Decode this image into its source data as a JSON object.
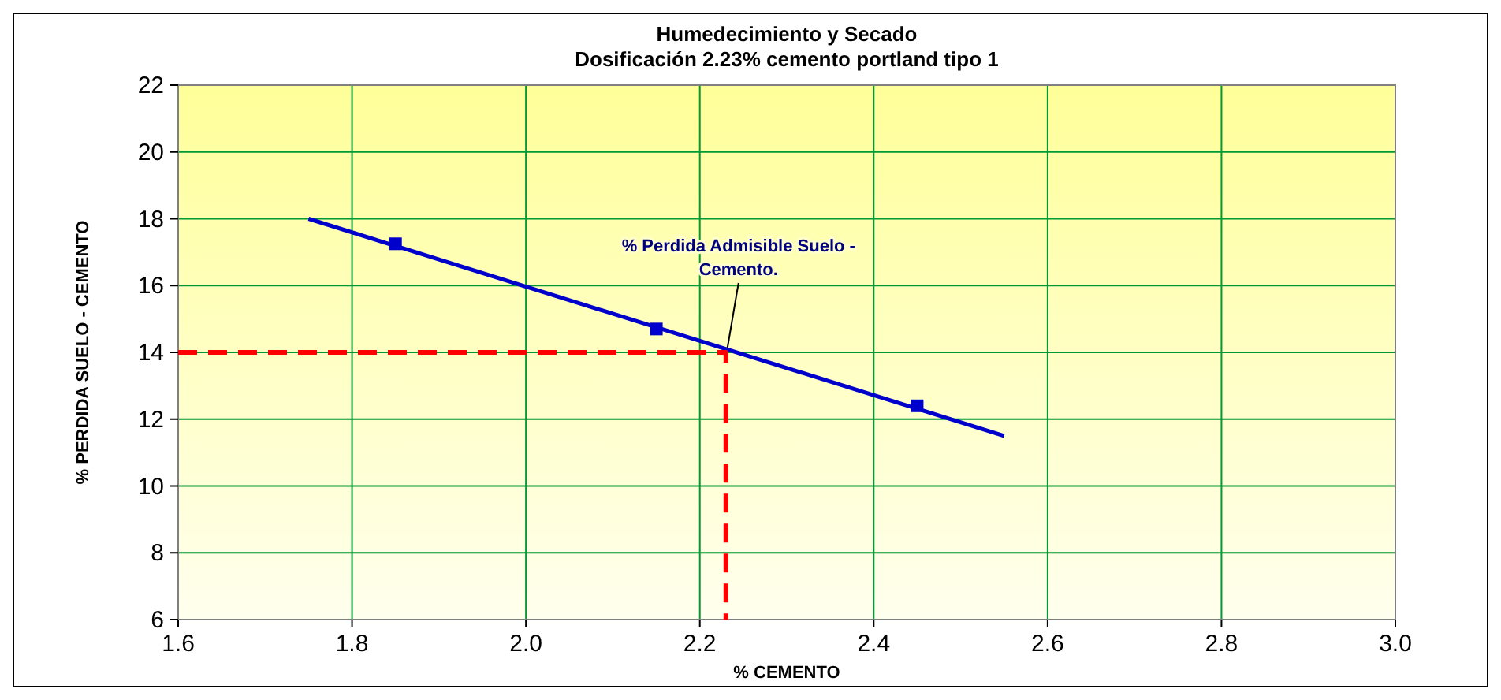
{
  "chart_data": {
    "type": "scatter",
    "title": "Humedecimiento y Secado",
    "subtitle": "Dosificación 2.23% cemento portland tipo 1",
    "xlabel": "% CEMENTO",
    "ylabel": "% PERDIDA SUELO - CEMENTO",
    "xlim": [
      1.6,
      3.0
    ],
    "xticks": [
      {
        "value": 1.6,
        "label": "1.6"
      },
      {
        "value": 1.8,
        "label": "1.8"
      },
      {
        "value": 2.0,
        "label": "2.0"
      },
      {
        "value": 2.2,
        "label": "2.2"
      },
      {
        "value": 2.4,
        "label": "2.4"
      },
      {
        "value": 2.6,
        "label": "2.6"
      },
      {
        "value": 2.8,
        "label": "2.8"
      },
      {
        "value": 3.0,
        "label": "3.0"
      }
    ],
    "ylim": [
      6,
      22
    ],
    "yticks": [
      6,
      8,
      10,
      12,
      14,
      16,
      18,
      20,
      22
    ],
    "grid": true,
    "series": [
      {
        "type": "line",
        "color": "#0000cc",
        "x": [
          1.75,
          2.55
        ],
        "values": [
          18,
          11.5
        ],
        "marker": "none",
        "line_style": "solid"
      },
      {
        "color": "#0000cc",
        "x": [
          1.85,
          2.15,
          2.45
        ],
        "values": [
          17.25,
          14.7,
          12.4
        ],
        "marker": "square"
      },
      {
        "type": "line",
        "color": "#ff0000",
        "x": [
          1.6,
          2.23,
          2.23
        ],
        "values": [
          14,
          14,
          6
        ],
        "marker": "none",
        "line_style": "dashed"
      }
    ],
    "annotations": [
      {
        "text": "% Perdida Admisible Suelo - Cemento.",
        "x": 2.23,
        "y": 14
      }
    ]
  }
}
